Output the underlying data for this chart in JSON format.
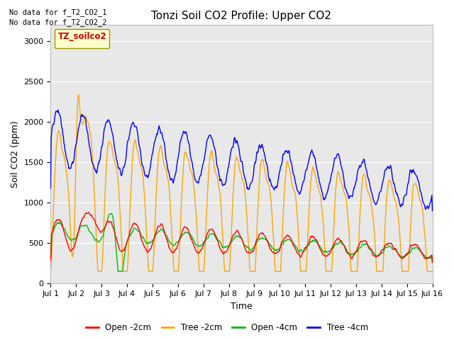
{
  "title": "Tonzi Soil CO2 Profile: Upper CO2",
  "xlabel": "Time",
  "ylabel": "Soil CO2 (ppm)",
  "ylim": [
    0,
    3200
  ],
  "yticks": [
    0,
    500,
    1000,
    1500,
    2000,
    2500,
    3000
  ],
  "plot_bg_color": "#e8e8e8",
  "fig_bg_color": "#ffffff",
  "nodata_text1": "No data for f_T2_CO2_1",
  "nodata_text2": "No data for f_T2_CO2_2",
  "legend_label": "TZ_soilco2",
  "legend_labels": [
    "Open -2cm",
    "Tree -2cm",
    "Open -4cm",
    "Tree -4cm"
  ],
  "legend_colors": [
    "#ff0000",
    "#ffa500",
    "#00bb00",
    "#0000ff"
  ],
  "line_colors": {
    "open2": "#ff0000",
    "tree2": "#ffa500",
    "open4": "#00bb00",
    "tree4": "#0000ff"
  },
  "xticklabels": [
    "Jul 1",
    "Jul 2",
    "Jul 3",
    "Jul 4",
    "Jul 5",
    "Jul 6",
    "Jul 7",
    "Jul 8",
    "Jul 9",
    "Jul 10",
    "Jul 11",
    "Jul 12",
    "Jul 13",
    "Jul 14",
    "Jul 15",
    "Jul 16"
  ],
  "title_fontsize": 11,
  "axis_fontsize": 9,
  "tick_fontsize": 8
}
